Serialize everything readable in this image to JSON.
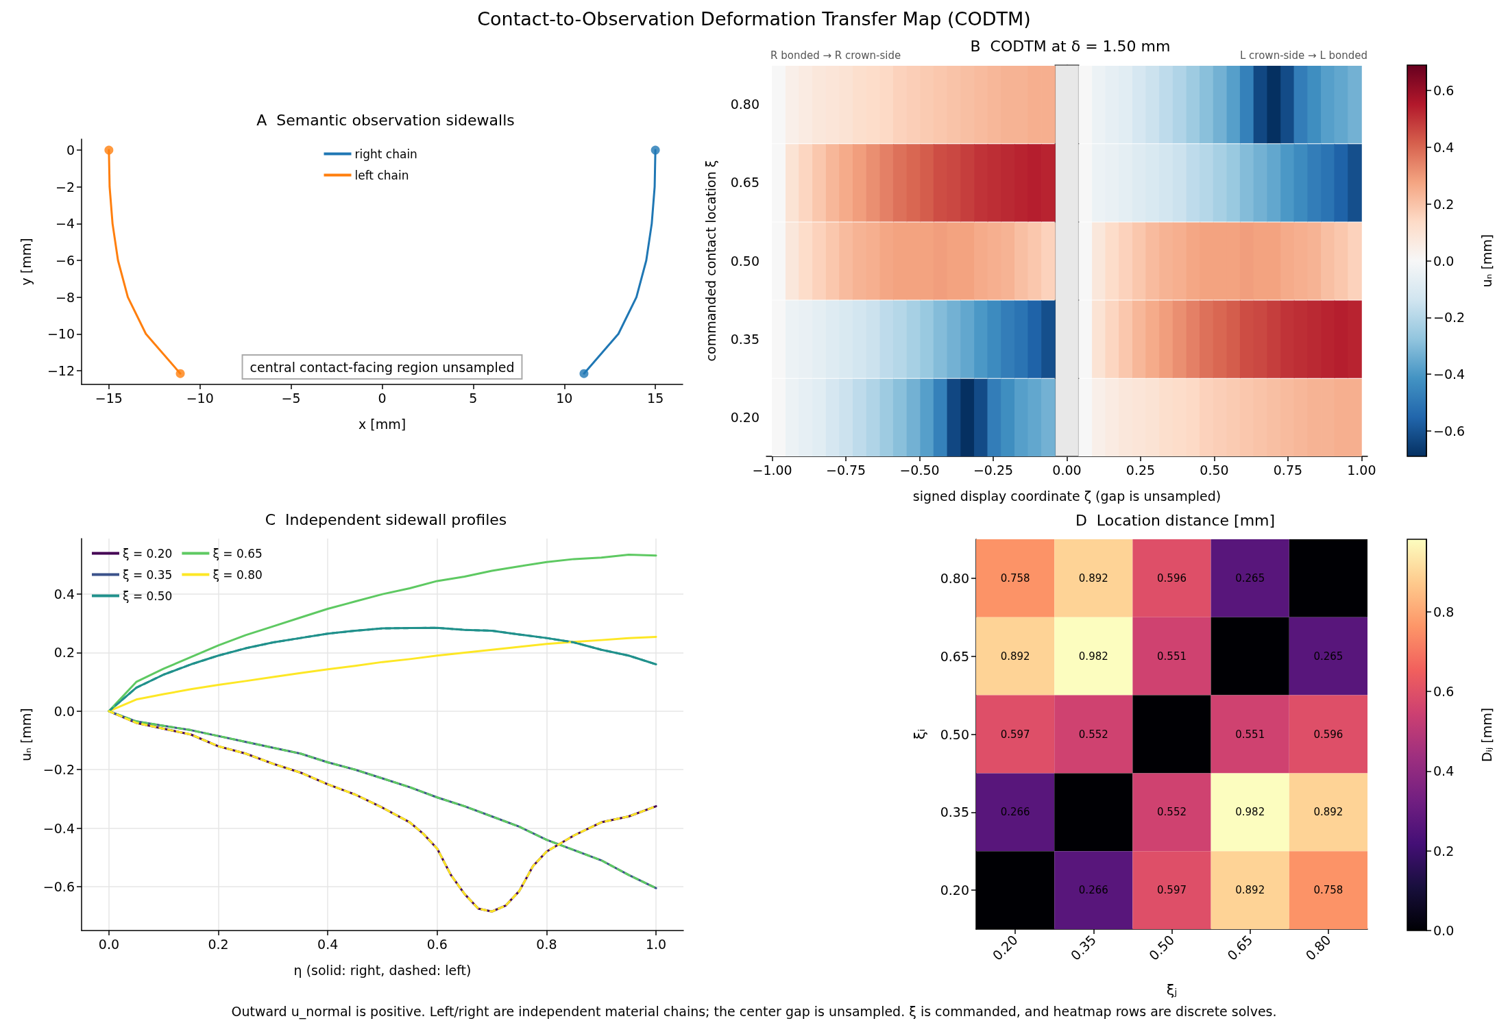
{
  "chart_data": [
    {
      "type": "other",
      "title": "Contact-to-Observation Deformation Transfer Map (CODTM)",
      "annotations": [
        "Outward u_normal is positive. Left/right are independent material chains; the center gap is unsampled. ξ is commanded, and heatmap rows are discrete solves."
      ]
    },
    {
      "type": "line",
      "title": "A  Semantic observation sidewalls",
      "xlabel": "x [mm]",
      "ylabel": "y [mm]",
      "xlim": [
        -16.5,
        16.5
      ],
      "ylim": [
        -12.75,
        0.6
      ],
      "xticks": [
        {
          "value": -15,
          "label": "−15"
        },
        {
          "value": -10,
          "label": "−10"
        },
        {
          "value": -5,
          "label": "−5"
        },
        0,
        5,
        10,
        15
      ],
      "yticks": [
        {
          "value": -12,
          "label": "−12"
        },
        {
          "value": -10,
          "label": "−10"
        },
        {
          "value": -8,
          "label": "−8"
        },
        {
          "value": -6,
          "label": "−6"
        },
        {
          "value": -4,
          "label": "−4"
        },
        {
          "value": -2,
          "label": "−2"
        },
        0
      ],
      "legend": "top",
      "annotations": [
        "central contact-facing region unsampled"
      ],
      "series": [
        {
          "name": "right chain",
          "color": "#1f77b4",
          "x": [
            15,
            14.96,
            14.8,
            14.5,
            13.96,
            12.97,
            11.08
          ],
          "values": [
            0,
            -2,
            -4,
            -6,
            -8,
            -10,
            -12.16
          ]
        },
        {
          "name": "left chain",
          "color": "#ff7f0e",
          "x": [
            -15,
            -14.96,
            -14.8,
            -14.5,
            -13.96,
            -12.97,
            -11.08
          ],
          "values": [
            0,
            -2,
            -4,
            -6,
            -8,
            -10,
            -12.16
          ]
        },
        {
          "type": "scatter",
          "color": "#1f77b4",
          "x": [
            15,
            11.08
          ],
          "values": [
            0,
            -12.16
          ]
        },
        {
          "type": "scatter",
          "color": "#ff7f0e",
          "x": [
            -15,
            -11.08
          ],
          "values": [
            0,
            -12.16
          ]
        }
      ]
    },
    {
      "type": "heatmap",
      "title": "B  CODTM at δ = 1.50 mm",
      "xlabel": "signed display coordinate ζ (gap is unsampled)",
      "ylabel": "commanded contact location ξ",
      "clabel": "uₙ [mm]",
      "annotations": [
        "R bonded → R crown-side",
        "L crown-side → L bonded"
      ],
      "xlim": [
        -1.02,
        1.02
      ],
      "xticks": [
        {
          "value": -1,
          "label": "−1.00"
        },
        {
          "value": -0.75,
          "label": "−0.75"
        },
        {
          "value": -0.5,
          "label": "−0.50"
        },
        {
          "value": -0.25,
          "label": "−0.25"
        },
        {
          "value": 0,
          "label": "0.00"
        },
        {
          "value": 0.25,
          "label": "0.25"
        },
        {
          "value": 0.5,
          "label": "0.50"
        },
        {
          "value": 0.75,
          "label": "0.75"
        },
        {
          "value": 1,
          "label": "1.00"
        }
      ],
      "x": [
        -0.977,
        -0.931,
        -0.886,
        -0.84,
        -0.794,
        -0.749,
        -0.703,
        -0.657,
        -0.611,
        -0.566,
        -0.52,
        -0.474,
        -0.429,
        -0.383,
        -0.337,
        -0.291,
        -0.246,
        -0.2,
        -0.154,
        -0.109,
        -0.063,
        0.063,
        0.109,
        0.154,
        0.2,
        0.246,
        0.291,
        0.337,
        0.383,
        0.429,
        0.474,
        0.52,
        0.566,
        0.611,
        0.657,
        0.703,
        0.749,
        0.794,
        0.84,
        0.886,
        0.931,
        0.977
      ],
      "y_categories": [
        "0.80",
        "0.65",
        "0.50",
        "0.35",
        "0.20"
      ],
      "cells": [
        [
          0,
          0.04,
          0.06,
          0.08,
          0.09,
          0.1,
          0.12,
          0.13,
          0.14,
          0.16,
          0.17,
          0.18,
          0.19,
          0.2,
          0.21,
          0.22,
          0.23,
          0.24,
          0.24,
          0.25,
          0.25,
          0,
          -0.04,
          -0.06,
          -0.08,
          -0.12,
          -0.15,
          -0.18,
          -0.21,
          -0.25,
          -0.29,
          -0.33,
          -0.38,
          -0.47,
          -0.63,
          -0.69,
          -0.62,
          -0.48,
          -0.43,
          -0.38,
          -0.36,
          -0.33
        ],
        [
          0,
          0.1,
          0.15,
          0.19,
          0.23,
          0.26,
          0.29,
          0.32,
          0.35,
          0.38,
          0.4,
          0.42,
          0.45,
          0.46,
          0.48,
          0.5,
          0.51,
          0.52,
          0.53,
          0.54,
          0.53,
          0,
          -0.04,
          -0.05,
          -0.07,
          -0.09,
          -0.11,
          -0.13,
          -0.15,
          -0.18,
          -0.2,
          -0.23,
          -0.26,
          -0.3,
          -0.33,
          -0.36,
          -0.4,
          -0.44,
          -0.48,
          -0.51,
          -0.56,
          -0.61
        ],
        [
          0,
          0.08,
          0.13,
          0.16,
          0.19,
          0.22,
          0.24,
          0.25,
          0.27,
          0.28,
          0.28,
          0.28,
          0.29,
          0.28,
          0.28,
          0.26,
          0.25,
          0.24,
          0.21,
          0.19,
          0.16,
          0,
          0.08,
          0.13,
          0.16,
          0.19,
          0.22,
          0.24,
          0.25,
          0.27,
          0.28,
          0.28,
          0.28,
          0.29,
          0.28,
          0.28,
          0.26,
          0.25,
          0.24,
          0.21,
          0.19,
          0.16
        ],
        [
          0,
          -0.04,
          -0.05,
          -0.07,
          -0.09,
          -0.11,
          -0.13,
          -0.15,
          -0.18,
          -0.2,
          -0.23,
          -0.26,
          -0.3,
          -0.33,
          -0.36,
          -0.4,
          -0.44,
          -0.48,
          -0.51,
          -0.56,
          -0.61,
          0,
          0.1,
          0.15,
          0.19,
          0.23,
          0.26,
          0.29,
          0.32,
          0.35,
          0.38,
          0.4,
          0.42,
          0.45,
          0.46,
          0.48,
          0.5,
          0.51,
          0.52,
          0.53,
          0.54,
          0.53
        ],
        [
          0,
          -0.04,
          -0.06,
          -0.08,
          -0.12,
          -0.15,
          -0.18,
          -0.21,
          -0.25,
          -0.29,
          -0.33,
          -0.38,
          -0.47,
          -0.63,
          -0.69,
          -0.62,
          -0.48,
          -0.43,
          -0.38,
          -0.36,
          -0.33,
          0,
          0.04,
          0.06,
          0.08,
          0.09,
          0.1,
          0.12,
          0.13,
          0.14,
          0.16,
          0.17,
          0.18,
          0.19,
          0.2,
          0.21,
          0.22,
          0.23,
          0.24,
          0.24,
          0.25,
          0.25
        ]
      ],
      "clim": [
        -0.69,
        0.69
      ],
      "cticks": [
        {
          "value": -0.6,
          "label": "−0.6"
        },
        {
          "value": -0.4,
          "label": "−0.4"
        },
        {
          "value": -0.2,
          "label": "−0.2"
        },
        {
          "value": 0,
          "label": "0.0"
        },
        {
          "value": 0.2,
          "label": "0.2"
        },
        {
          "value": 0.4,
          "label": "0.4"
        },
        {
          "value": 0.6,
          "label": "0.6"
        }
      ],
      "bands": [
        {
          "axis": "x",
          "from": -0.04,
          "to": 0.04,
          "color": "#e8e8e8"
        }
      ]
    },
    {
      "type": "line",
      "title": "C  Independent sidewall profiles",
      "xlabel": "η (solid: right, dashed: left)",
      "ylabel": "uₙ [mm]",
      "xlim": [
        -0.05,
        1.05
      ],
      "ylim": [
        -0.75,
        0.59
      ],
      "xticks": [
        {
          "value": 0,
          "label": "0.0"
        },
        {
          "value": 0.2,
          "label": "0.2"
        },
        {
          "value": 0.4,
          "label": "0.4"
        },
        {
          "value": 0.6,
          "label": "0.6"
        },
        {
          "value": 0.8,
          "label": "0.8"
        },
        {
          "value": 1,
          "label": "1.0"
        }
      ],
      "yticks": [
        {
          "value": -0.6,
          "label": "−0.6"
        },
        {
          "value": -0.4,
          "label": "−0.4"
        },
        {
          "value": -0.2,
          "label": "−0.2"
        },
        {
          "value": 0,
          "label": "0.0"
        },
        {
          "value": 0.2,
          "label": "0.2"
        },
        {
          "value": 0.4,
          "label": "0.4"
        }
      ],
      "grid": true,
      "legend": "top left",
      "line_style": "solid",
      "x": [
        0,
        0.05,
        0.1,
        0.15,
        0.2,
        0.25,
        0.3,
        0.35,
        0.4,
        0.45,
        0.5,
        0.55,
        0.6,
        0.65,
        0.7,
        0.75,
        0.8,
        0.85,
        0.9,
        0.95,
        1.0
      ],
      "series": [
        {
          "name": "ξ = 0.20",
          "color": "#440154",
          "x": [
            0,
            0.05,
            0.1,
            0.15,
            0.2,
            0.25,
            0.3,
            0.35,
            0.4,
            0.45,
            0.5,
            0.55,
            0.575,
            0.6,
            0.625,
            0.65,
            0.675,
            0.7,
            0.725,
            0.75,
            0.775,
            0.8,
            0.85,
            0.9,
            0.95,
            1.0
          ],
          "values": [
            0,
            -0.04,
            -0.06,
            -0.08,
            -0.12,
            -0.145,
            -0.18,
            -0.21,
            -0.25,
            -0.285,
            -0.33,
            -0.38,
            -0.42,
            -0.47,
            -0.56,
            -0.625,
            -0.675,
            -0.685,
            -0.665,
            -0.615,
            -0.53,
            -0.48,
            -0.425,
            -0.38,
            -0.36,
            -0.325
          ]
        },
        {
          "name": "ξ = 0.35",
          "color": "#3b528b",
          "values": [
            0,
            -0.035,
            -0.05,
            -0.065,
            -0.085,
            -0.105,
            -0.125,
            -0.145,
            -0.175,
            -0.2,
            -0.23,
            -0.26,
            -0.295,
            -0.325,
            -0.36,
            -0.395,
            -0.44,
            -0.475,
            -0.51,
            -0.56,
            -0.605
          ]
        },
        {
          "name": "ξ = 0.50",
          "color": "#21918c",
          "values": [
            0,
            0.08,
            0.125,
            0.16,
            0.19,
            0.215,
            0.235,
            0.25,
            0.265,
            0.275,
            0.283,
            0.284,
            0.285,
            0.278,
            0.275,
            0.262,
            0.25,
            0.235,
            0.21,
            0.19,
            0.16
          ]
        },
        {
          "color": "#21918c",
          "line_style": "dashed",
          "values": [
            0,
            0.08,
            0.125,
            0.16,
            0.19,
            0.215,
            0.235,
            0.25,
            0.265,
            0.275,
            0.283,
            0.284,
            0.285,
            0.278,
            0.275,
            0.262,
            0.25,
            0.235,
            0.21,
            0.19,
            0.16
          ]
        },
        {
          "name": "ξ = 0.65",
          "color": "#5ec962",
          "values": [
            0,
            0.1,
            0.145,
            0.185,
            0.225,
            0.26,
            0.29,
            0.32,
            0.35,
            0.375,
            0.4,
            0.42,
            0.445,
            0.46,
            0.48,
            0.495,
            0.51,
            0.52,
            0.525,
            0.535,
            0.532
          ]
        },
        {
          "color": "#5ec962",
          "line_style": "dashed",
          "values": [
            0,
            -0.035,
            -0.05,
            -0.065,
            -0.085,
            -0.105,
            -0.125,
            -0.145,
            -0.175,
            -0.2,
            -0.23,
            -0.26,
            -0.295,
            -0.325,
            -0.36,
            -0.395,
            -0.44,
            -0.475,
            -0.51,
            -0.56,
            -0.605
          ]
        },
        {
          "name": "ξ = 0.80",
          "color": "#fde725",
          "values": [
            0,
            0.04,
            0.058,
            0.075,
            0.09,
            0.103,
            0.117,
            0.13,
            0.143,
            0.155,
            0.168,
            0.178,
            0.19,
            0.2,
            0.21,
            0.22,
            0.23,
            0.237,
            0.243,
            0.25,
            0.254
          ]
        },
        {
          "color": "#fde725",
          "line_style": "dashed",
          "x": [
            0,
            0.05,
            0.1,
            0.15,
            0.2,
            0.25,
            0.3,
            0.35,
            0.4,
            0.45,
            0.5,
            0.55,
            0.575,
            0.6,
            0.625,
            0.65,
            0.675,
            0.7,
            0.725,
            0.75,
            0.775,
            0.8,
            0.85,
            0.9,
            0.95,
            1.0
          ],
          "values": [
            0,
            -0.04,
            -0.06,
            -0.08,
            -0.12,
            -0.145,
            -0.18,
            -0.21,
            -0.25,
            -0.285,
            -0.33,
            -0.38,
            -0.42,
            -0.47,
            -0.56,
            -0.625,
            -0.675,
            -0.685,
            -0.665,
            -0.615,
            -0.53,
            -0.48,
            -0.425,
            -0.38,
            -0.36,
            -0.325
          ]
        }
      ]
    },
    {
      "type": "heatmap",
      "title": "D  Location distance [mm]",
      "xlabel": "ξⱼ",
      "ylabel": "ξᵢ",
      "clabel": "Dᵢⱼ [mm]",
      "categories": [
        "0.20",
        "0.35",
        "0.50",
        "0.65",
        "0.80"
      ],
      "y_categories": [
        "0.80",
        "0.65",
        "0.50",
        "0.35",
        "0.20"
      ],
      "cells": [
        [
          0.758,
          0.892,
          0.596,
          0.265,
          0
        ],
        [
          0.892,
          0.982,
          0.551,
          0,
          0.265
        ],
        [
          0.597,
          0.552,
          0,
          0.551,
          0.596
        ],
        [
          0.266,
          0,
          0.552,
          0.982,
          0.892
        ],
        [
          0,
          0.266,
          0.597,
          0.892,
          0.758
        ]
      ],
      "cell_labels": [
        [
          "0.758",
          "0.892",
          "0.596",
          "0.265",
          null
        ],
        [
          "0.892",
          "0.982",
          "0.551",
          null,
          "0.265"
        ],
        [
          "0.597",
          "0.552",
          null,
          "0.551",
          "0.596"
        ],
        [
          "0.266",
          null,
          "0.552",
          "0.982",
          "0.892"
        ],
        [
          null,
          "0.266",
          "0.597",
          "0.892",
          "0.758"
        ]
      ],
      "clim": [
        0,
        0.982
      ],
      "cticks": [
        {
          "value": 0,
          "label": "0.0"
        },
        {
          "value": 0.2,
          "label": "0.2"
        },
        {
          "value": 0.4,
          "label": "0.4"
        },
        {
          "value": 0.6,
          "label": "0.6"
        },
        {
          "value": 0.8,
          "label": "0.8"
        }
      ]
    }
  ]
}
